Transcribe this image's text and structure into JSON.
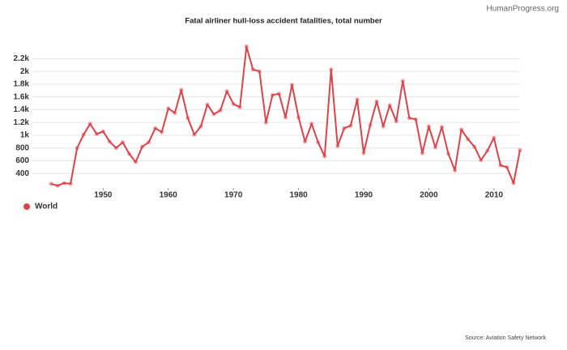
{
  "chart_data": {
    "type": "line",
    "title": "Fatal airliner hull-loss accident fatalities, total number",
    "credit": "HumanProgress.org",
    "source": "Source: Aviation Safety Network",
    "x": [
      1942,
      1943,
      1944,
      1945,
      1946,
      1947,
      1948,
      1949,
      1950,
      1951,
      1952,
      1953,
      1954,
      1955,
      1956,
      1957,
      1958,
      1959,
      1960,
      1961,
      1962,
      1963,
      1964,
      1965,
      1966,
      1967,
      1968,
      1969,
      1970,
      1971,
      1972,
      1973,
      1974,
      1975,
      1976,
      1977,
      1978,
      1979,
      1980,
      1981,
      1982,
      1983,
      1984,
      1985,
      1986,
      1987,
      1988,
      1989,
      1990,
      1991,
      1992,
      1993,
      1994,
      1995,
      1996,
      1997,
      1998,
      1999,
      2000,
      2001,
      2002,
      2003,
      2004,
      2005,
      2006,
      2007,
      2008,
      2009,
      2010,
      2011,
      2012,
      2013,
      2014
    ],
    "series": [
      {
        "name": "World",
        "color": "#d9434b",
        "values": [
          240,
          210,
          250,
          240,
          800,
          1010,
          1180,
          1020,
          1060,
          900,
          800,
          890,
          710,
          580,
          820,
          890,
          1110,
          1050,
          1420,
          1350,
          1710,
          1270,
          1010,
          1140,
          1480,
          1330,
          1390,
          1690,
          1490,
          1440,
          2390,
          2030,
          2000,
          1200,
          1630,
          1650,
          1280,
          1790,
          1280,
          900,
          1180,
          890,
          670,
          2030,
          830,
          1110,
          1150,
          1560,
          720,
          1160,
          1530,
          1140,
          1470,
          1220,
          1850,
          1270,
          1250,
          720,
          1140,
          810,
          1130,
          710,
          450,
          1090,
          940,
          820,
          610,
          760,
          960,
          530,
          500,
          250,
          770
        ]
      }
    ],
    "xlim": [
      1942,
      2014
    ],
    "xticks": [
      1950,
      1960,
      1970,
      1980,
      1990,
      2000,
      2010
    ],
    "ylim": [
      200,
      2400
    ],
    "yticks": [
      400,
      600,
      800,
      {
        "value": 1000,
        "label": "1k"
      },
      {
        "value": 1200,
        "label": "1.2k"
      },
      {
        "value": 1400,
        "label": "1.4k"
      },
      {
        "value": 1600,
        "label": "1.6k"
      },
      {
        "value": 1800,
        "label": "1.8k"
      },
      {
        "value": 2000,
        "label": "2k"
      },
      {
        "value": 2200,
        "label": "2.2k"
      }
    ],
    "grid": true,
    "legend": "bottom-left"
  }
}
